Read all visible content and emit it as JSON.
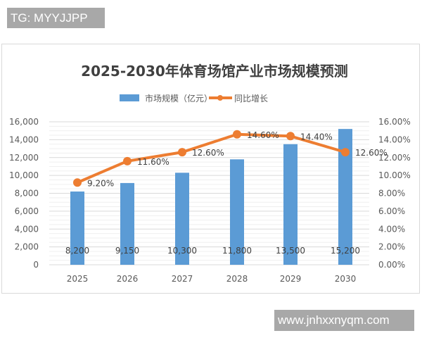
{
  "overlays": {
    "top_label": "TG: MYYJJPP",
    "bottom_label": "www.jnhxxnyqm.com"
  },
  "chart_data": {
    "type": "bar",
    "title": "2025-2030年体育场馆产业市场规模预测",
    "categories": [
      "2025",
      "2026",
      "2027",
      "2028",
      "2029",
      "2030"
    ],
    "series": [
      {
        "name": "市场规模（亿元）",
        "type": "bar",
        "axis": "left",
        "color": "#5b9bd5",
        "values": [
          8200,
          9150,
          10300,
          11800,
          13500,
          15200
        ],
        "labels": [
          "8,200",
          "9,150",
          "10,300",
          "11,800",
          "13,500",
          "15,200"
        ]
      },
      {
        "name": "同比增长",
        "type": "line",
        "axis": "right",
        "color": "#ed7d31",
        "values": [
          9.2,
          11.6,
          12.6,
          14.6,
          14.4,
          12.6
        ],
        "labels": [
          "9.20%",
          "11.60%",
          "12.60%",
          "14.60%",
          "14.40%",
          "12.60%"
        ]
      }
    ],
    "y_left": {
      "ylim": [
        0,
        16000
      ],
      "ticks": [
        "0",
        "2,000",
        "4,000",
        "6,000",
        "8,000",
        "10,000",
        "12,000",
        "14,000",
        "16,000"
      ]
    },
    "y_right": {
      "ylim": [
        0,
        16
      ],
      "ticks": [
        "0.00%",
        "2.00%",
        "4.00%",
        "6.00%",
        "8.00%",
        "10.00%",
        "12.00%",
        "14.00%",
        "16.00%"
      ]
    },
    "xlabel": "",
    "ylabel": "",
    "grid": true,
    "legend_position": "top"
  }
}
